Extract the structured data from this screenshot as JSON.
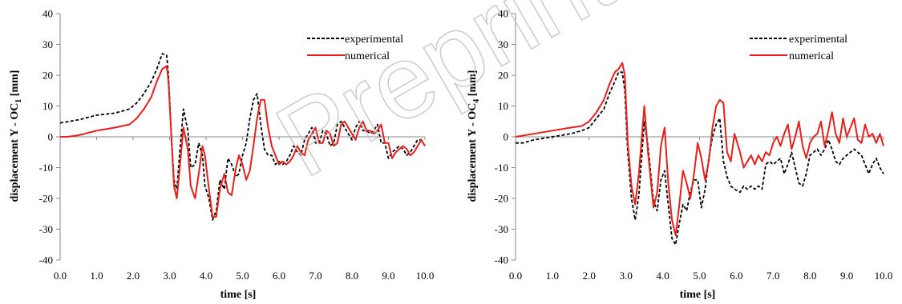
{
  "chart_data": [
    {
      "type": "line",
      "xlabel": "time  [s]",
      "ylabel_main": "displacement Y - OC",
      "ylabel_sub": "1",
      "ylabel_unit": " [mm]",
      "xlim": [
        0,
        10
      ],
      "ylim": [
        -40,
        40
      ],
      "xticks": [
        "0.0",
        "1.0",
        "2.0",
        "3.0",
        "4.0",
        "5.0",
        "6.0",
        "7.0",
        "8.0",
        "9.0",
        "10.0"
      ],
      "yticks": [
        "40",
        "30",
        "20",
        "10",
        "0",
        "-10",
        "-20",
        "-30",
        "-40"
      ],
      "legend_position": "top-right",
      "series": [
        {
          "name": "experimental",
          "style": "dashed",
          "color": "#000000",
          "x": [
            0,
            0.5,
            1.0,
            1.5,
            1.9,
            2.1,
            2.3,
            2.5,
            2.65,
            2.8,
            2.92,
            2.97,
            3.05,
            3.12,
            3.2,
            3.28,
            3.38,
            3.5,
            3.58,
            3.7,
            3.8,
            3.9,
            3.97,
            4.08,
            4.18,
            4.28,
            4.38,
            4.5,
            4.6,
            4.7,
            4.82,
            4.9,
            5.0,
            5.1,
            5.2,
            5.3,
            5.4,
            5.5,
            5.6,
            5.7,
            5.8,
            5.9,
            6.0,
            6.1,
            6.2,
            6.3,
            6.4,
            6.5,
            6.6,
            6.7,
            6.8,
            6.9,
            7.0,
            7.1,
            7.2,
            7.3,
            7.4,
            7.5,
            7.6,
            7.7,
            7.8,
            7.9,
            8.0,
            8.1,
            8.2,
            8.3,
            8.4,
            8.5,
            8.6,
            8.7,
            8.8,
            8.9,
            9.0,
            9.1,
            9.2,
            9.3,
            9.4,
            9.5,
            9.6,
            9.7,
            9.8,
            9.9,
            10.0
          ],
          "values": [
            4.5,
            5.5,
            7,
            7.7,
            9,
            11,
            14,
            18,
            22,
            27,
            26.5,
            20,
            0,
            -14,
            -17,
            -5,
            9,
            2,
            -10,
            -9,
            -2,
            -6,
            -16,
            -20,
            -27,
            -24,
            -14,
            -17,
            -7,
            -9,
            -13,
            -12,
            -6,
            -2,
            6,
            12,
            14,
            4,
            -4,
            -6,
            -6,
            -9,
            -8,
            -9,
            -8,
            -6,
            -3,
            -5,
            -6,
            -1,
            1,
            3,
            -2,
            -2,
            2,
            1,
            -3,
            -2,
            4,
            5,
            3,
            1,
            -1,
            3,
            5,
            2,
            2,
            1,
            2,
            4,
            -2,
            -2,
            -7,
            -5,
            -4,
            -3,
            -4,
            -6,
            -5,
            -3,
            -1,
            -1,
            -3
          ]
        },
        {
          "name": "numerical",
          "style": "solid",
          "color": "#e8201a",
          "x": [
            0,
            0.2,
            0.5,
            1.0,
            1.5,
            1.9,
            2.1,
            2.3,
            2.5,
            2.65,
            2.8,
            2.92,
            2.97,
            3.05,
            3.12,
            3.2,
            3.28,
            3.38,
            3.5,
            3.58,
            3.7,
            3.8,
            3.9,
            3.97,
            4.08,
            4.18,
            4.28,
            4.38,
            4.5,
            4.6,
            4.7,
            4.82,
            4.9,
            5.0,
            5.1,
            5.2,
            5.3,
            5.4,
            5.5,
            5.6,
            5.7,
            5.8,
            5.9,
            6.0,
            6.1,
            6.2,
            6.3,
            6.4,
            6.5,
            6.6,
            6.7,
            6.8,
            6.9,
            7.0,
            7.1,
            7.2,
            7.3,
            7.4,
            7.5,
            7.6,
            7.7,
            7.8,
            7.9,
            8.0,
            8.1,
            8.2,
            8.3,
            8.4,
            8.5,
            8.6,
            8.7,
            8.8,
            8.9,
            9.0,
            9.1,
            9.2,
            9.3,
            9.4,
            9.5,
            9.6,
            9.7,
            9.8,
            9.9,
            10.0
          ],
          "values": [
            0,
            0,
            0.5,
            2,
            3,
            4,
            6,
            9,
            13,
            18,
            22,
            23,
            18,
            0,
            -16,
            -20,
            -10,
            3,
            -4,
            -16,
            -20,
            -12,
            -3,
            -6,
            -17,
            -26,
            -26,
            -17,
            -12,
            -18,
            -19,
            -10,
            -6,
            -9,
            -14,
            -11,
            -3,
            6,
            12,
            12,
            3,
            -3,
            -6,
            -9,
            -8,
            -9,
            -8,
            -6,
            -3,
            -5,
            -6,
            -1,
            1,
            3,
            -2,
            -2,
            2,
            1,
            -3,
            -2,
            4,
            5,
            3,
            1,
            -1,
            3,
            5,
            2,
            2,
            1,
            2,
            4,
            -2,
            -2,
            -7,
            -5,
            -4,
            -3,
            -4,
            -6,
            -5,
            -3,
            -1,
            -3
          ]
        }
      ]
    },
    {
      "type": "line",
      "xlabel": "time  [s]",
      "ylabel_main": "displacement Y - OC",
      "ylabel_sub": "4",
      "ylabel_unit": " [mm]",
      "xlim": [
        0,
        10
      ],
      "ylim": [
        -40,
        40
      ],
      "xticks": [
        "0.0",
        "1.0",
        "2.0",
        "3.0",
        "4.0",
        "5.0",
        "6.0",
        "7.0",
        "8.0",
        "9.0",
        "10.0"
      ],
      "yticks": [
        "40",
        "30",
        "20",
        "10",
        "0",
        "-10",
        "-20",
        "-30",
        "-40"
      ],
      "legend_position": "top-right",
      "series": [
        {
          "name": "experimental",
          "style": "dashed",
          "color": "#000000",
          "x": [
            0,
            0.2,
            0.5,
            1.0,
            1.5,
            1.8,
            2.0,
            2.2,
            2.4,
            2.55,
            2.7,
            2.8,
            2.9,
            2.97,
            3.05,
            3.15,
            3.25,
            3.35,
            3.5,
            3.6,
            3.75,
            3.85,
            3.95,
            4.05,
            4.15,
            4.25,
            4.35,
            4.45,
            4.55,
            4.65,
            4.75,
            4.85,
            4.95,
            5.05,
            5.15,
            5.25,
            5.35,
            5.45,
            5.55,
            5.65,
            5.75,
            5.85,
            5.95,
            6.1,
            6.2,
            6.3,
            6.4,
            6.5,
            6.6,
            6.7,
            6.8,
            6.9,
            7.0,
            7.1,
            7.2,
            7.3,
            7.4,
            7.5,
            7.6,
            7.7,
            7.8,
            7.9,
            8.0,
            8.1,
            8.2,
            8.3,
            8.4,
            8.5,
            8.6,
            8.7,
            8.8,
            8.9,
            9.0,
            9.1,
            9.2,
            9.3,
            9.4,
            9.5,
            9.6,
            9.7,
            9.8,
            9.9,
            10.0
          ],
          "values": [
            -2,
            -2,
            -1,
            0,
            1,
            2,
            3,
            6,
            9,
            14,
            18,
            21,
            21,
            15,
            -5,
            -20,
            -27,
            -19,
            5,
            -3,
            -21,
            -24,
            -14,
            -11,
            -22,
            -33,
            -35,
            -28,
            -22,
            -24,
            -18,
            -14,
            -14,
            -23,
            -17,
            -7,
            0,
            4,
            6,
            -8,
            -13,
            -16,
            -17,
            -18,
            -16,
            -17,
            -16,
            -17,
            -16,
            -17,
            -9,
            -8,
            -9,
            -8,
            -7,
            -12,
            -9,
            -5,
            -10,
            -15,
            -16,
            -12,
            -6,
            -5,
            -4,
            -6,
            -4,
            -1,
            -4,
            -8,
            -9,
            -7,
            -6,
            -5,
            -4,
            -5,
            -6,
            -9,
            -12,
            -9,
            -7,
            -10,
            -12
          ]
        },
        {
          "name": "numerical",
          "style": "solid",
          "color": "#e8201a",
          "x": [
            0,
            0.5,
            1.0,
            1.5,
            1.8,
            2.0,
            2.2,
            2.4,
            2.55,
            2.7,
            2.8,
            2.9,
            2.97,
            3.05,
            3.15,
            3.25,
            3.35,
            3.5,
            3.6,
            3.75,
            3.85,
            3.95,
            4.05,
            4.15,
            4.25,
            4.35,
            4.45,
            4.55,
            4.65,
            4.75,
            4.85,
            4.95,
            5.05,
            5.15,
            5.25,
            5.35,
            5.45,
            5.55,
            5.65,
            5.75,
            5.85,
            5.95,
            6.1,
            6.2,
            6.3,
            6.4,
            6.5,
            6.6,
            6.7,
            6.8,
            6.9,
            7.0,
            7.1,
            7.2,
            7.3,
            7.4,
            7.5,
            7.6,
            7.7,
            7.8,
            7.9,
            8.0,
            8.1,
            8.2,
            8.3,
            8.4,
            8.5,
            8.6,
            8.7,
            8.8,
            8.9,
            9.0,
            9.1,
            9.2,
            9.3,
            9.4,
            9.5,
            9.6,
            9.7,
            9.8,
            9.9,
            10.0
          ],
          "values": [
            0,
            1,
            2,
            3,
            3.5,
            5,
            8,
            12,
            17,
            21,
            22,
            24,
            20,
            -2,
            -16,
            -22,
            -12,
            10,
            -5,
            -23,
            -18,
            -3,
            3,
            -15,
            -27,
            -32,
            -22,
            -11,
            -15,
            -20,
            -12,
            -2,
            -7,
            -14,
            -8,
            3,
            10,
            12,
            11,
            -5,
            -8,
            1,
            -5,
            -10,
            -8,
            -6,
            -9,
            -6,
            -8,
            -5,
            -6,
            -2,
            0,
            -3,
            1,
            4,
            -4,
            0,
            5,
            -3,
            -7,
            -2,
            0,
            1,
            5,
            -3,
            2,
            8,
            1,
            -2,
            6,
            0,
            3,
            6,
            -1,
            -2,
            4,
            0,
            1,
            -2,
            1,
            -3
          ]
        }
      ]
    }
  ],
  "watermark_text": "Preprint"
}
